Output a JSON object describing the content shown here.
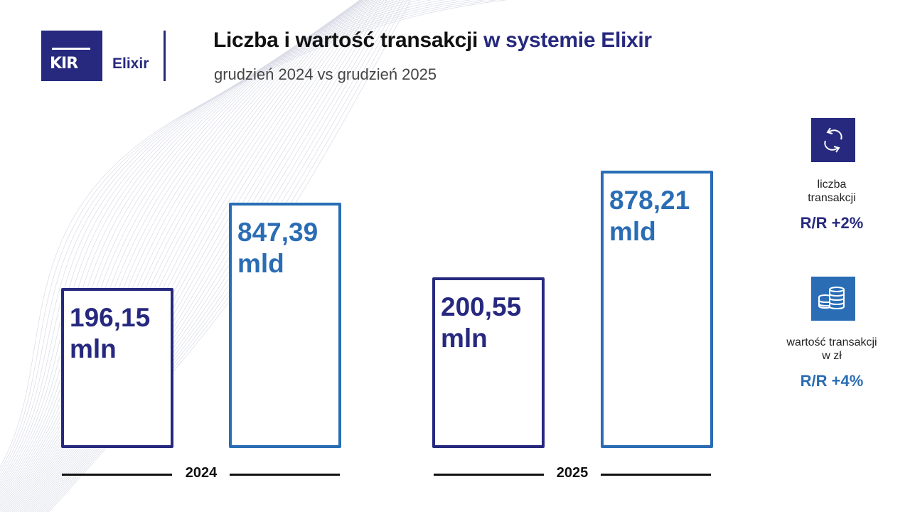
{
  "logo": {
    "kir": "KIR",
    "product": "Elixir"
  },
  "header": {
    "title_main": "Liczba i wartość transakcji",
    "title_accent": "w systemie Elixir",
    "subtitle": "grudzień 2024 vs grudzień 2025"
  },
  "colors": {
    "navy": "#27297f",
    "blue": "#2a6db5"
  },
  "chart_data": {
    "type": "bar",
    "categories": [
      "2024",
      "2025"
    ],
    "series": [
      {
        "name": "liczba transakcji",
        "unit": "mln",
        "values": [
          196.15,
          200.55
        ],
        "labels": [
          "196,15 mln",
          "200,55 mln"
        ],
        "color": "#27297f"
      },
      {
        "name": "wartość transakcji w zł",
        "unit": "mld",
        "values": [
          847.39,
          878.21
        ],
        "labels": [
          "847,39 mld",
          "878,21 mld"
        ],
        "color": "#2a6db5"
      }
    ],
    "bar_labels": {
      "b0": [
        "196,15",
        "mln"
      ],
      "b1": [
        "847,39",
        "mld"
      ],
      "b2": [
        "200,55",
        "mln"
      ],
      "b3": [
        "878,21",
        "mld"
      ]
    }
  },
  "legend": {
    "count": {
      "icon": "exchange-arrows-icon",
      "label1": "liczba",
      "label2": "transakcji",
      "rr": "R/R +2%"
    },
    "value": {
      "icon": "coins-icon",
      "label1": "wartość transakcji",
      "label2": "w zł",
      "rr": "R/R +4%"
    }
  }
}
